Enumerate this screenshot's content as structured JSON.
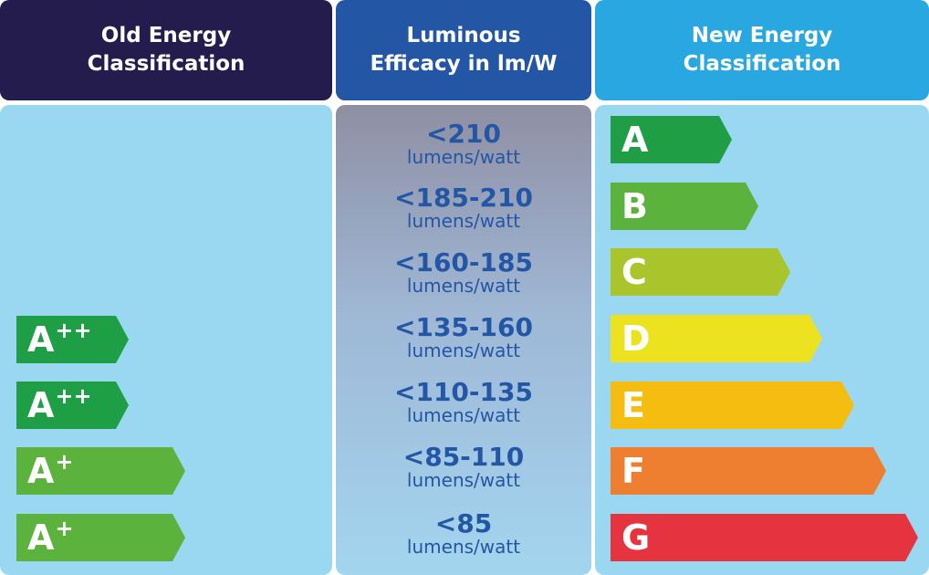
{
  "headers": {
    "old_line1": "Old Energy",
    "old_line2": "Classification",
    "lum_line1": "Luminous",
    "lum_line2": "Efficacy in lm/W",
    "new_line1": "New Energy",
    "new_line2": "Classification"
  },
  "old_classes": [
    {
      "base": "A",
      "sup": "++",
      "color": "#1e9e45"
    },
    {
      "base": "A",
      "sup": "++",
      "color": "#1e9e45"
    },
    {
      "base": "A",
      "sup": "+",
      "color": "#5bb33e"
    },
    {
      "base": "A",
      "sup": "+",
      "color": "#5bb33e"
    }
  ],
  "efficacy": [
    {
      "value": "<210",
      "unit": "lumens/watt"
    },
    {
      "value": "<185-210",
      "unit": "lumens/watt"
    },
    {
      "value": "<160-185",
      "unit": "lumens/watt"
    },
    {
      "value": "<135-160",
      "unit": "lumens/watt"
    },
    {
      "value": "<110-135",
      "unit": "lumens/watt"
    },
    {
      "value": "<85-110",
      "unit": "lumens/watt"
    },
    {
      "value": "<85",
      "unit": "lumens/watt"
    }
  ],
  "new_classes": [
    {
      "label": "A",
      "color": "#1f9e45"
    },
    {
      "label": "B",
      "color": "#5bb33e"
    },
    {
      "label": "C",
      "color": "#aac42c"
    },
    {
      "label": "D",
      "color": "#ede21f"
    },
    {
      "label": "E",
      "color": "#f5bd10"
    },
    {
      "label": "F",
      "color": "#ee7f30"
    },
    {
      "label": "G",
      "color": "#e5343f"
    }
  ]
}
